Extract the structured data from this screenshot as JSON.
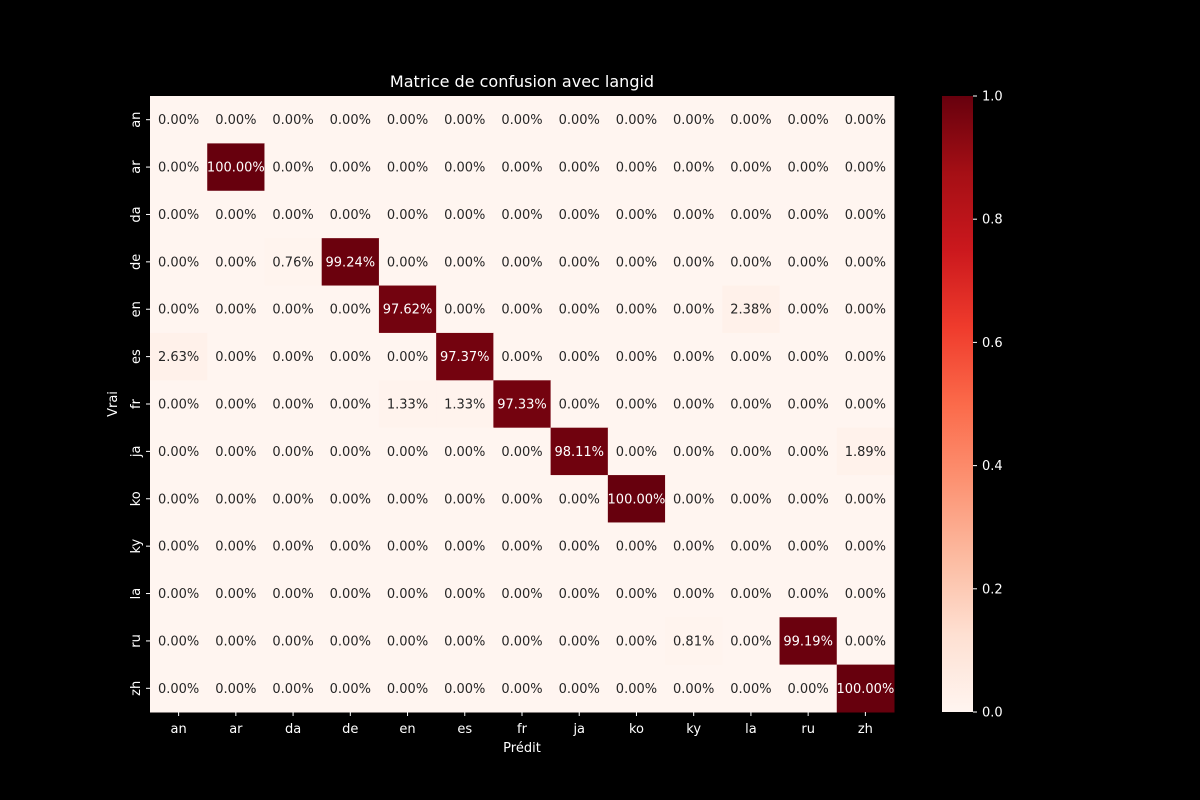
{
  "chart_data": {
    "type": "heatmap",
    "title": "Matrice de confusion avec langid",
    "xlabel": "Prédit",
    "ylabel": "Vrai",
    "x_categories": [
      "an",
      "ar",
      "da",
      "de",
      "en",
      "es",
      "fr",
      "ja",
      "ko",
      "ky",
      "la",
      "ru",
      "zh"
    ],
    "y_categories": [
      "an",
      "ar",
      "da",
      "de",
      "en",
      "es",
      "fr",
      "ja",
      "ko",
      "ky",
      "la",
      "ru",
      "zh"
    ],
    "values": [
      [
        0,
        0,
        0,
        0,
        0,
        0,
        0,
        0,
        0,
        0,
        0,
        0,
        0
      ],
      [
        0,
        1.0,
        0,
        0,
        0,
        0,
        0,
        0,
        0,
        0,
        0,
        0,
        0
      ],
      [
        0,
        0,
        0,
        0,
        0,
        0,
        0,
        0,
        0,
        0,
        0,
        0,
        0
      ],
      [
        0,
        0,
        0.0076,
        0.9924,
        0,
        0,
        0,
        0,
        0,
        0,
        0,
        0,
        0
      ],
      [
        0,
        0,
        0,
        0,
        0.9762,
        0,
        0,
        0,
        0,
        0,
        0.0238,
        0,
        0
      ],
      [
        0.0263,
        0,
        0,
        0,
        0,
        0.9737,
        0,
        0,
        0,
        0,
        0,
        0,
        0
      ],
      [
        0,
        0,
        0,
        0,
        0.0133,
        0.0133,
        0.9733,
        0,
        0,
        0,
        0,
        0,
        0
      ],
      [
        0,
        0,
        0,
        0,
        0,
        0,
        0,
        0.9811,
        0,
        0,
        0,
        0,
        0.0189
      ],
      [
        0,
        0,
        0,
        0,
        0,
        0,
        0,
        0,
        1.0,
        0,
        0,
        0,
        0
      ],
      [
        0,
        0,
        0,
        0,
        0,
        0,
        0,
        0,
        0,
        0,
        0,
        0,
        0
      ],
      [
        0,
        0,
        0,
        0,
        0,
        0,
        0,
        0,
        0,
        0,
        0,
        0,
        0
      ],
      [
        0,
        0,
        0,
        0,
        0,
        0,
        0,
        0,
        0,
        0.0081,
        0,
        0.9919,
        0
      ],
      [
        0,
        0,
        0,
        0,
        0,
        0,
        0,
        0,
        0,
        0,
        0,
        0,
        1.0
      ]
    ],
    "cell_labels": [
      [
        "0.00%",
        "0.00%",
        "0.00%",
        "0.00%",
        "0.00%",
        "0.00%",
        "0.00%",
        "0.00%",
        "0.00%",
        "0.00%",
        "0.00%",
        "0.00%",
        "0.00%"
      ],
      [
        "0.00%",
        "100.00%",
        "0.00%",
        "0.00%",
        "0.00%",
        "0.00%",
        "0.00%",
        "0.00%",
        "0.00%",
        "0.00%",
        "0.00%",
        "0.00%",
        "0.00%"
      ],
      [
        "0.00%",
        "0.00%",
        "0.00%",
        "0.00%",
        "0.00%",
        "0.00%",
        "0.00%",
        "0.00%",
        "0.00%",
        "0.00%",
        "0.00%",
        "0.00%",
        "0.00%"
      ],
      [
        "0.00%",
        "0.00%",
        "0.76%",
        "99.24%",
        "0.00%",
        "0.00%",
        "0.00%",
        "0.00%",
        "0.00%",
        "0.00%",
        "0.00%",
        "0.00%",
        "0.00%"
      ],
      [
        "0.00%",
        "0.00%",
        "0.00%",
        "0.00%",
        "97.62%",
        "0.00%",
        "0.00%",
        "0.00%",
        "0.00%",
        "0.00%",
        "2.38%",
        "0.00%",
        "0.00%"
      ],
      [
        "2.63%",
        "0.00%",
        "0.00%",
        "0.00%",
        "0.00%",
        "97.37%",
        "0.00%",
        "0.00%",
        "0.00%",
        "0.00%",
        "0.00%",
        "0.00%",
        "0.00%"
      ],
      [
        "0.00%",
        "0.00%",
        "0.00%",
        "0.00%",
        "1.33%",
        "1.33%",
        "97.33%",
        "0.00%",
        "0.00%",
        "0.00%",
        "0.00%",
        "0.00%",
        "0.00%"
      ],
      [
        "0.00%",
        "0.00%",
        "0.00%",
        "0.00%",
        "0.00%",
        "0.00%",
        "0.00%",
        "98.11%",
        "0.00%",
        "0.00%",
        "0.00%",
        "0.00%",
        "1.89%"
      ],
      [
        "0.00%",
        "0.00%",
        "0.00%",
        "0.00%",
        "0.00%",
        "0.00%",
        "0.00%",
        "0.00%",
        "100.00%",
        "0.00%",
        "0.00%",
        "0.00%",
        "0.00%"
      ],
      [
        "0.00%",
        "0.00%",
        "0.00%",
        "0.00%",
        "0.00%",
        "0.00%",
        "0.00%",
        "0.00%",
        "0.00%",
        "0.00%",
        "0.00%",
        "0.00%",
        "0.00%"
      ],
      [
        "0.00%",
        "0.00%",
        "0.00%",
        "0.00%",
        "0.00%",
        "0.00%",
        "0.00%",
        "0.00%",
        "0.00%",
        "0.00%",
        "0.00%",
        "0.00%",
        "0.00%"
      ],
      [
        "0.00%",
        "0.00%",
        "0.00%",
        "0.00%",
        "0.00%",
        "0.00%",
        "0.00%",
        "0.00%",
        "0.00%",
        "0.81%",
        "0.00%",
        "99.19%",
        "0.00%"
      ],
      [
        "0.00%",
        "0.00%",
        "0.00%",
        "0.00%",
        "0.00%",
        "0.00%",
        "0.00%",
        "0.00%",
        "0.00%",
        "0.00%",
        "0.00%",
        "0.00%",
        "100.00%"
      ]
    ],
    "colorbar": {
      "range": [
        0.0,
        1.0
      ],
      "ticks": [
        0.0,
        0.2,
        0.4,
        0.6,
        0.8,
        1.0
      ],
      "tick_labels": [
        "0.0",
        "0.2",
        "0.4",
        "0.6",
        "0.8",
        "1.0"
      ],
      "colormap": "Reds",
      "stops": [
        "#fff5f0",
        "#fee0d2",
        "#fcbba1",
        "#fc9272",
        "#fb6a4a",
        "#ef3b2c",
        "#cb181d",
        "#a50f15",
        "#67000d"
      ]
    },
    "colors": {
      "background": "#000000",
      "text": "#ffffff"
    }
  }
}
